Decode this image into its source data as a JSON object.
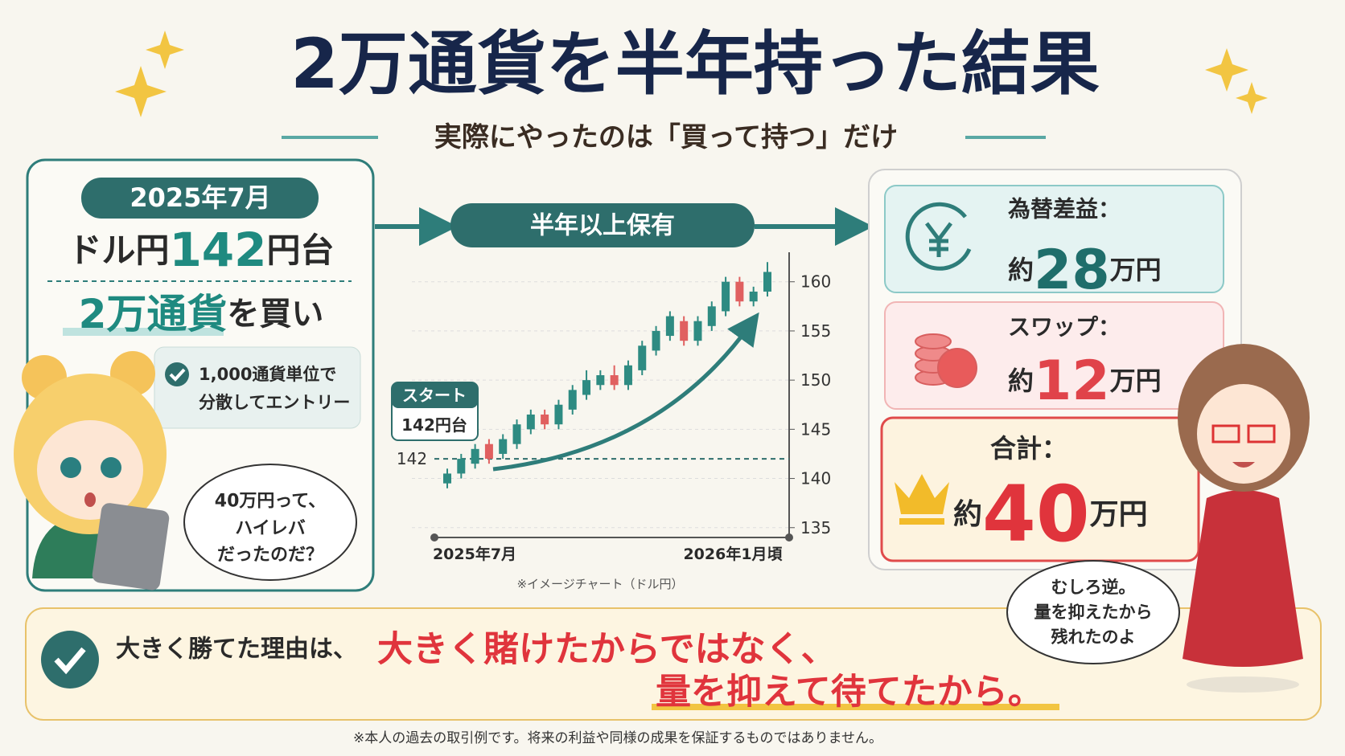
{
  "header": {
    "title": "2万通貨を半年持った結果",
    "subtitle": "実際にやったのは「買って持つ」だけ"
  },
  "entry": {
    "date": "2025年7月",
    "pair_prefix": "ドル円",
    "rate": "142",
    "rate_suffix": "円台",
    "amount": "2万通貨",
    "action": "を買い",
    "note": [
      "1,000通貨単位で",
      "分散してエントリー"
    ]
  },
  "bear_bubble": [
    "40万円って、",
    "ハイレバ",
    "だったのだ？"
  ],
  "hold_label": "半年以上保有",
  "chart_data": {
    "type": "candlestick",
    "open": [
      139.5,
      140.5,
      141.5,
      143.5,
      142.5,
      143.5,
      145,
      146.5,
      145.5,
      147,
      148.5,
      149.5,
      150.5,
      149.5,
      151,
      153,
      154.5,
      156,
      154,
      155.5,
      157,
      160,
      158,
      159
    ],
    "high": [
      141,
      142.5,
      143.5,
      144,
      144.5,
      146,
      147,
      147,
      148,
      149.5,
      151,
      151,
      151.5,
      152,
      154,
      155.5,
      157,
      156.5,
      156.5,
      158,
      160.5,
      160.5,
      159.5,
      162
    ],
    "low": [
      139,
      140,
      141,
      141.5,
      142,
      143,
      144.5,
      145,
      145,
      146.5,
      148,
      149,
      149,
      149,
      150.5,
      152.5,
      154,
      153.5,
      153.5,
      155,
      156.5,
      157.5,
      157.5,
      158.5
    ],
    "close": [
      140.5,
      142,
      143,
      142,
      144,
      145.5,
      146.5,
      145.5,
      147.5,
      149,
      150,
      150.5,
      149.5,
      151.5,
      153.5,
      155,
      156.5,
      154,
      156,
      157.5,
      160,
      158,
      159,
      161
    ],
    "up_color": "#2e8b82",
    "down_color": "#e06060",
    "ylim": [
      134,
      163
    ],
    "yticks": [
      135,
      140,
      145,
      150,
      155,
      160
    ],
    "reference_line": 142,
    "start_label": "スタート",
    "start_value": "142円台",
    "x_labels": [
      "2025年7月",
      "2026年1月頃"
    ],
    "caption": "※イメージチャート（ドル円）"
  },
  "results": [
    {
      "label": "為替差益：",
      "prefix": "約",
      "amount": "28",
      "unit": "万円"
    },
    {
      "label": "スワップ：",
      "prefix": "約",
      "amount": "12",
      "unit": "万円"
    },
    {
      "label": "合計：",
      "prefix": "約",
      "amount": "40",
      "unit": "万円"
    }
  ],
  "advisor_bubble": [
    "むしろ逆。",
    "量を抑えたから",
    "残れたのよ"
  ],
  "conclusion": {
    "lead": "大きく勝てた理由は、",
    "line1": "大きく賭けたからではなく、",
    "line2": "量を抑えて待てたから。"
  },
  "footnote": "※本人の過去の取引例です。将来の利益や同様の成果を保証するものではありません。"
}
